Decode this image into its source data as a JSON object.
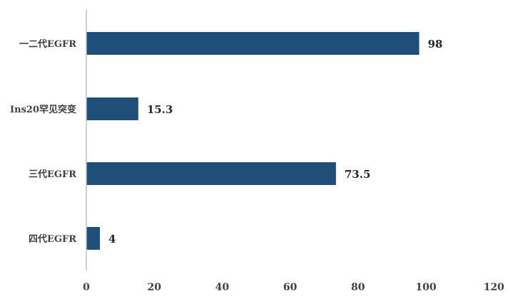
{
  "chart_data": {
    "type": "bar",
    "orientation": "horizontal",
    "categories": [
      "一二代EGFR",
      "Ins20罕见突变",
      "三代EGFR",
      "四代EGFR"
    ],
    "values": [
      98,
      15.3,
      73.5,
      4
    ],
    "data_labels": [
      "98",
      "15.3",
      "73.5",
      "4"
    ],
    "xlim": [
      0,
      120
    ],
    "x_ticks": [
      0,
      20,
      40,
      60,
      80,
      100,
      120
    ],
    "grid": false,
    "legend": "none",
    "bar_color": "#1F4E79",
    "axis_color": "#BFBFBF"
  }
}
